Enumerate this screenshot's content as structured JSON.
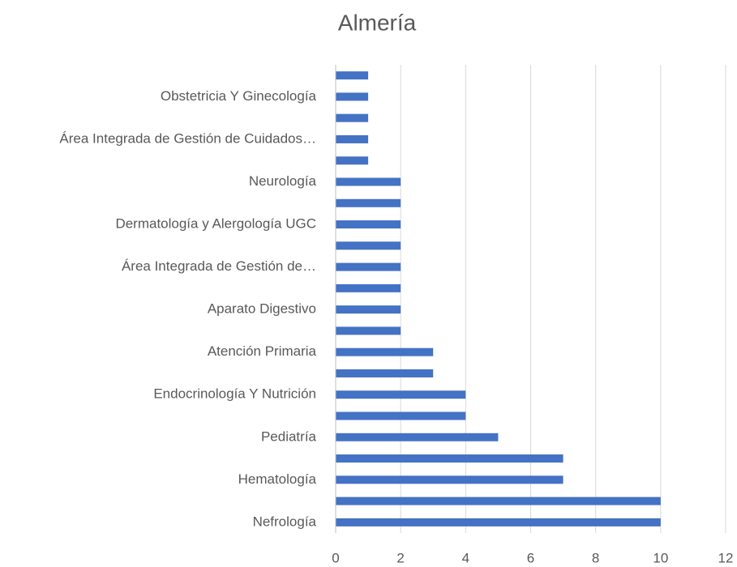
{
  "chart_data": {
    "type": "barh",
    "title": "Almería",
    "categories": [
      "Nefrología",
      null,
      "Hematología",
      null,
      "Pediatría",
      null,
      "Endocrinología Y Nutrición",
      null,
      "Atención Primaria",
      null,
      "Aparato Digestivo",
      null,
      "Área Integrada de Gestión de…",
      null,
      "Dermatología y Alergología UGC",
      null,
      "Neurología",
      null,
      "Área Integrada de Gestión de Cuidados…",
      null,
      "Obstetricia Y Ginecología",
      null
    ],
    "values": [
      10,
      10,
      7,
      7,
      5,
      4,
      4,
      3,
      3,
      2,
      2,
      2,
      2,
      2,
      2,
      2,
      2,
      1,
      1,
      1,
      1,
      1
    ],
    "color": "#4472c4",
    "xlim": [
      0,
      12
    ],
    "xticks": [
      0,
      2,
      4,
      6,
      8,
      10,
      12
    ],
    "grid": true
  }
}
